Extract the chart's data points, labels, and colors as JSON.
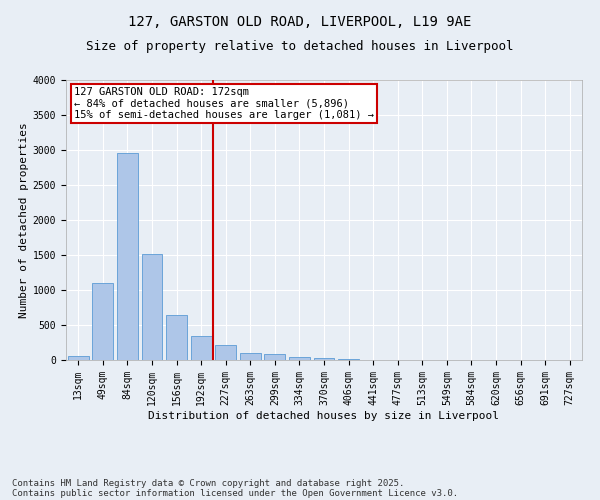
{
  "title_line1": "127, GARSTON OLD ROAD, LIVERPOOL, L19 9AE",
  "title_line2": "Size of property relative to detached houses in Liverpool",
  "xlabel": "Distribution of detached houses by size in Liverpool",
  "ylabel": "Number of detached properties",
  "bar_labels": [
    "13sqm",
    "49sqm",
    "84sqm",
    "120sqm",
    "156sqm",
    "192sqm",
    "227sqm",
    "263sqm",
    "299sqm",
    "334sqm",
    "370sqm",
    "406sqm",
    "441sqm",
    "477sqm",
    "513sqm",
    "549sqm",
    "584sqm",
    "620sqm",
    "656sqm",
    "691sqm",
    "727sqm"
  ],
  "bar_values": [
    55,
    1100,
    2950,
    1520,
    650,
    340,
    215,
    95,
    80,
    50,
    30,
    10,
    0,
    0,
    0,
    0,
    0,
    0,
    0,
    0,
    0
  ],
  "bar_color": "#aec6e8",
  "bar_edge_color": "#5b9bd5",
  "vline_x": 5.5,
  "vline_color": "#cc0000",
  "annotation_text": "127 GARSTON OLD ROAD: 172sqm\n← 84% of detached houses are smaller (5,896)\n15% of semi-detached houses are larger (1,081) →",
  "annotation_box_color": "#ffffff",
  "annotation_box_edge_color": "#cc0000",
  "ylim": [
    0,
    4000
  ],
  "yticks": [
    0,
    500,
    1000,
    1500,
    2000,
    2500,
    3000,
    3500,
    4000
  ],
  "background_color": "#e8eef5",
  "plot_bg_color": "#e8eef5",
  "grid_color": "#ffffff",
  "footer_line1": "Contains HM Land Registry data © Crown copyright and database right 2025.",
  "footer_line2": "Contains public sector information licensed under the Open Government Licence v3.0.",
  "title_fontsize": 10,
  "subtitle_fontsize": 9,
  "axis_label_fontsize": 8,
  "tick_fontsize": 7,
  "annotation_fontsize": 7.5,
  "footer_fontsize": 6.5
}
